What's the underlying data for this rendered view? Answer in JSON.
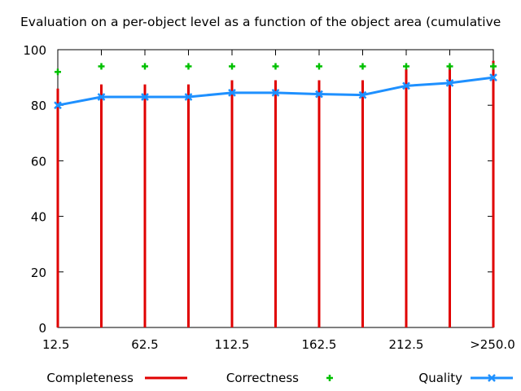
{
  "chart_data": {
    "type": "line",
    "title": "Evaluation on a per-object level as a function of the object area (cumulative",
    "xlabel": "",
    "ylabel": "",
    "ylim": [
      0,
      100
    ],
    "yticks": [
      0,
      20,
      40,
      60,
      80,
      100
    ],
    "x_tick_labels": [
      "12.5",
      "62.5",
      "112.5",
      "162.5",
      "212.5",
      ">250.0"
    ],
    "categories": [
      "12.5",
      "37.5",
      "62.5",
      "87.5",
      "112.5",
      "137.5",
      "162.5",
      "187.5",
      "212.5",
      "237.5",
      ">250.0"
    ],
    "grid": false,
    "legend_position": "bottom",
    "series": [
      {
        "name": "Completeness",
        "style": "impulses",
        "color": "#e00000",
        "values": [
          86,
          87.5,
          87.5,
          87.5,
          89,
          89,
          89,
          89,
          93,
          94,
          96
        ]
      },
      {
        "name": "Correctness",
        "style": "points",
        "marker": "plus",
        "color": "#00c000",
        "values": [
          92,
          94,
          94,
          94,
          94,
          94,
          94,
          94,
          94,
          94,
          94
        ]
      },
      {
        "name": "Quality",
        "style": "linespoints",
        "marker": "x",
        "color": "#1e90ff",
        "values": [
          80,
          83,
          83,
          83,
          84.5,
          84.5,
          84,
          83.7,
          87,
          88,
          90
        ]
      }
    ]
  }
}
